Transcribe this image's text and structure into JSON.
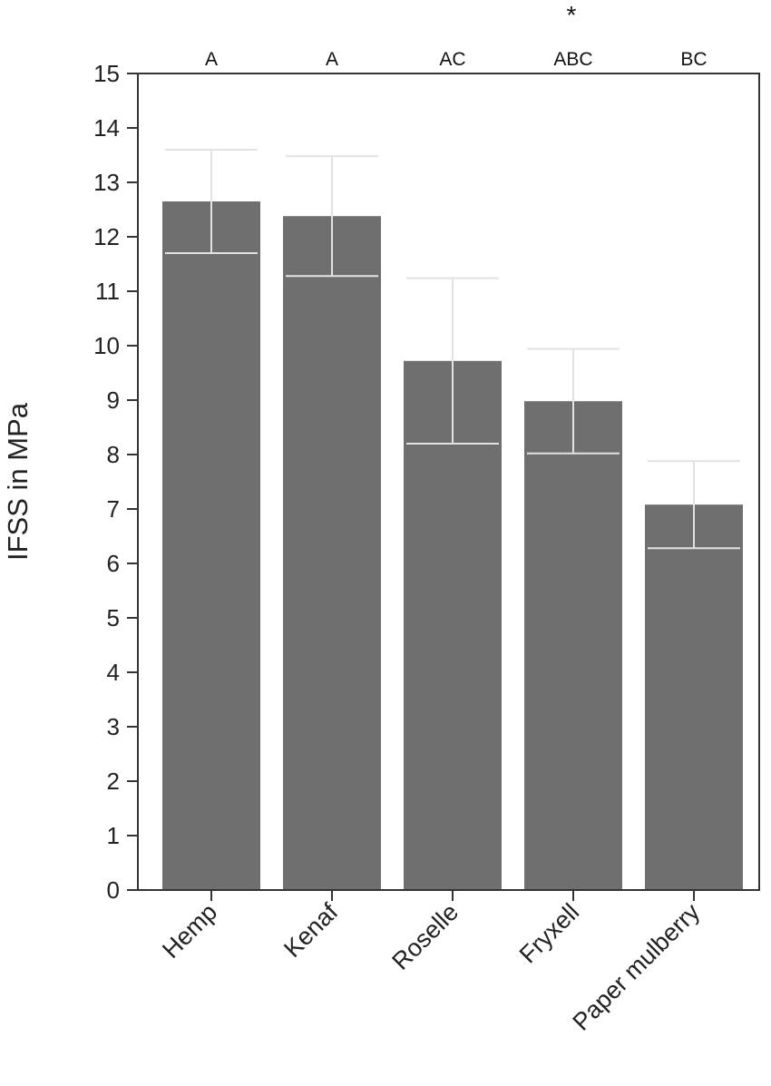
{
  "colors": {
    "bar": "#6f6f6f",
    "error_bar": "#e2e2e2",
    "axis": "#333333"
  },
  "chart_data": {
    "type": "bar",
    "categories": [
      "Hemp",
      "Kenaf",
      "Roselle",
      "Fryxell",
      "Paper mulberry"
    ],
    "values": [
      12.65,
      12.38,
      9.72,
      8.98,
      7.08
    ],
    "error": [
      0.95,
      1.1,
      1.52,
      0.96,
      0.8
    ],
    "group_letters": [
      "A",
      "A",
      "AC",
      "ABC",
      "BC"
    ],
    "annotation": "*",
    "annotation_category": "Fryxell",
    "ylabel": "IFSS in MPa",
    "xlabel": "",
    "ylim": [
      0,
      15
    ],
    "yticks": [
      0,
      1,
      2,
      3,
      4,
      5,
      6,
      7,
      8,
      9,
      10,
      11,
      12,
      13,
      14,
      15
    ],
    "grid": false,
    "legend": "none"
  }
}
